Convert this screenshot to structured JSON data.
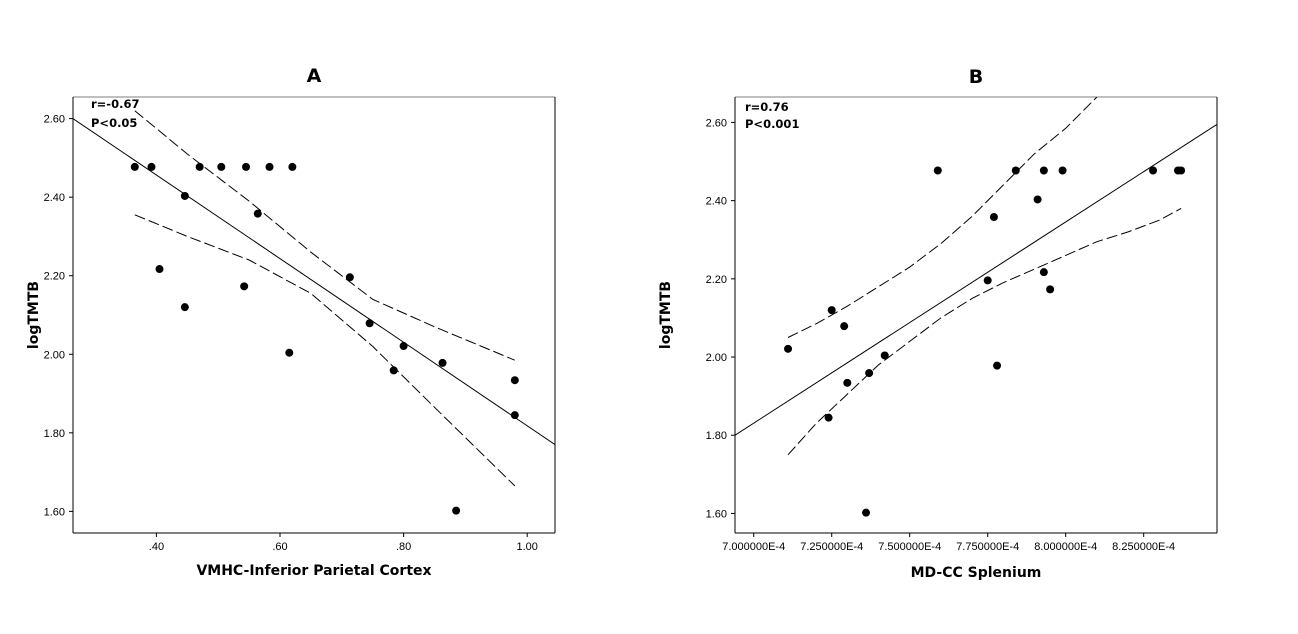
{
  "chart_data": [
    {
      "type": "scatter",
      "title": "A",
      "xlabel": "VMHC-Inferior Parietal Cortex",
      "ylabel": "logTMTB",
      "annotations": [
        "r=-0.67",
        "P<0.05"
      ],
      "xlim": [
        0.265,
        1.045
      ],
      "ylim": [
        1.545,
        2.655
      ],
      "xticks": [
        0.4,
        0.6,
        0.8,
        1.0
      ],
      "xtick_labels": [
        ".40",
        ".60",
        ".80",
        "1.00"
      ],
      "yticks": [
        1.6,
        1.8,
        2.0,
        2.2,
        2.4,
        2.6
      ],
      "ytick_labels": [
        "1.60",
        "1.80",
        "2.00",
        "2.20",
        "2.40",
        "2.60"
      ],
      "grid": false,
      "points": [
        {
          "x": 0.365,
          "y": 2.477
        },
        {
          "x": 0.392,
          "y": 2.477
        },
        {
          "x": 0.47,
          "y": 2.477
        },
        {
          "x": 0.505,
          "y": 2.477
        },
        {
          "x": 0.545,
          "y": 2.477
        },
        {
          "x": 0.583,
          "y": 2.477
        },
        {
          "x": 0.62,
          "y": 2.477
        },
        {
          "x": 0.446,
          "y": 2.403
        },
        {
          "x": 0.564,
          "y": 2.358
        },
        {
          "x": 0.405,
          "y": 2.217
        },
        {
          "x": 0.446,
          "y": 2.12
        },
        {
          "x": 0.542,
          "y": 2.173
        },
        {
          "x": 0.615,
          "y": 2.004
        },
        {
          "x": 0.713,
          "y": 2.196
        },
        {
          "x": 0.745,
          "y": 2.079
        },
        {
          "x": 0.8,
          "y": 2.021
        },
        {
          "x": 0.784,
          "y": 1.959
        },
        {
          "x": 0.863,
          "y": 1.978
        },
        {
          "x": 0.885,
          "y": 1.602
        },
        {
          "x": 0.98,
          "y": 1.934
        },
        {
          "x": 0.98,
          "y": 1.845
        }
      ],
      "fit_line": {
        "x": [
          0.265,
          1.045
        ],
        "y": [
          2.6,
          1.77
        ]
      },
      "ci_upper": [
        {
          "x": 0.365,
          "y": 2.62
        },
        {
          "x": 0.45,
          "y": 2.51
        },
        {
          "x": 0.55,
          "y": 2.39
        },
        {
          "x": 0.65,
          "y": 2.26
        },
        {
          "x": 0.75,
          "y": 2.14
        },
        {
          "x": 0.85,
          "y": 2.07
        },
        {
          "x": 0.98,
          "y": 1.985
        }
      ],
      "ci_lower": [
        {
          "x": 0.365,
          "y": 2.355
        },
        {
          "x": 0.45,
          "y": 2.3
        },
        {
          "x": 0.55,
          "y": 2.24
        },
        {
          "x": 0.65,
          "y": 2.155
        },
        {
          "x": 0.75,
          "y": 2.02
        },
        {
          "x": 0.85,
          "y": 1.865
        },
        {
          "x": 0.98,
          "y": 1.665
        }
      ]
    },
    {
      "type": "scatter",
      "title": "B",
      "xlabel": "MD-CC Splenium",
      "ylabel": "logTMTB",
      "annotations": [
        "r=0.76",
        "P<0.001"
      ],
      "xlim": [
        0.000694,
        0.0008485
      ],
      "ylim": [
        1.55,
        2.665
      ],
      "xticks": [
        0.0007,
        0.000725,
        0.00075,
        0.000775,
        0.0008,
        0.000825
      ],
      "xtick_labels": [
        "7.000000E-4",
        "7.250000E-4",
        "7.500000E-4",
        "7.750000E-4",
        "8.000000E-4",
        "8.250000E-4"
      ],
      "yticks": [
        1.6,
        1.8,
        2.0,
        2.2,
        2.4,
        2.6
      ],
      "ytick_labels": [
        "1.60",
        "1.80",
        "2.00",
        "2.20",
        "2.40",
        "2.60"
      ],
      "grid": false,
      "points": [
        {
          "x": 0.000711,
          "y": 2.021
        },
        {
          "x": 0.000725,
          "y": 2.12
        },
        {
          "x": 0.000729,
          "y": 2.079
        },
        {
          "x": 0.000724,
          "y": 1.845
        },
        {
          "x": 0.00073,
          "y": 1.934
        },
        {
          "x": 0.000736,
          "y": 1.602
        },
        {
          "x": 0.000737,
          "y": 1.959
        },
        {
          "x": 0.000742,
          "y": 2.004
        },
        {
          "x": 0.000759,
          "y": 2.477
        },
        {
          "x": 0.000775,
          "y": 2.196
        },
        {
          "x": 0.000777,
          "y": 2.358
        },
        {
          "x": 0.000778,
          "y": 1.978
        },
        {
          "x": 0.000784,
          "y": 2.477
        },
        {
          "x": 0.000791,
          "y": 2.403
        },
        {
          "x": 0.000793,
          "y": 2.477
        },
        {
          "x": 0.000793,
          "y": 2.217
        },
        {
          "x": 0.000795,
          "y": 2.173
        },
        {
          "x": 0.000799,
          "y": 2.477
        },
        {
          "x": 0.000828,
          "y": 2.477
        },
        {
          "x": 0.000836,
          "y": 2.477
        },
        {
          "x": 0.000837,
          "y": 2.477
        }
      ],
      "fit_line": {
        "x": [
          0.000694,
          0.0008485
        ],
        "y": [
          1.8,
          2.595
        ]
      },
      "ci_upper": [
        {
          "x": 0.000711,
          "y": 2.05
        },
        {
          "x": 0.00072,
          "y": 2.085
        },
        {
          "x": 0.00073,
          "y": 2.13
        },
        {
          "x": 0.00074,
          "y": 2.18
        },
        {
          "x": 0.00075,
          "y": 2.23
        },
        {
          "x": 0.00076,
          "y": 2.29
        },
        {
          "x": 0.00077,
          "y": 2.36
        },
        {
          "x": 0.00078,
          "y": 2.44
        },
        {
          "x": 0.00079,
          "y": 2.52
        },
        {
          "x": 0.0008,
          "y": 2.585
        },
        {
          "x": 0.00081,
          "y": 2.665
        }
      ],
      "ci_lower": [
        {
          "x": 0.000711,
          "y": 1.75
        },
        {
          "x": 0.00072,
          "y": 1.83
        },
        {
          "x": 0.00073,
          "y": 1.905
        },
        {
          "x": 0.00074,
          "y": 1.98
        },
        {
          "x": 0.00075,
          "y": 2.04
        },
        {
          "x": 0.00076,
          "y": 2.1
        },
        {
          "x": 0.00077,
          "y": 2.15
        },
        {
          "x": 0.00078,
          "y": 2.19
        },
        {
          "x": 0.00079,
          "y": 2.225
        },
        {
          "x": 0.0008,
          "y": 2.26
        },
        {
          "x": 0.00081,
          "y": 2.295
        },
        {
          "x": 0.00082,
          "y": 2.32
        },
        {
          "x": 0.00083,
          "y": 2.35
        },
        {
          "x": 0.000837,
          "y": 2.38
        }
      ]
    }
  ]
}
